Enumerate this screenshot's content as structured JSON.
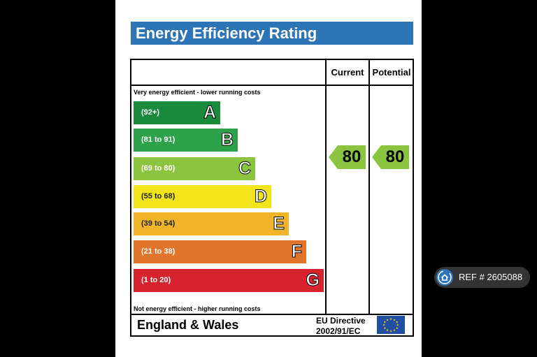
{
  "title": "Energy Efficiency Rating",
  "columns": {
    "current": "Current",
    "potential": "Potential"
  },
  "notes": {
    "top": "Very energy efficient - lower running costs",
    "bottom": "Not energy efficient - higher running costs"
  },
  "bands": [
    {
      "range": "(92+)",
      "letter": "A",
      "color": "#1a8a3c"
    },
    {
      "range": "(81 to 91)",
      "letter": "B",
      "color": "#2ea24a"
    },
    {
      "range": "(69 to 80)",
      "letter": "C",
      "color": "#8bc53f"
    },
    {
      "range": "(55 to 68)",
      "letter": "D",
      "color": "#f3e51c"
    },
    {
      "range": "(39 to 54)",
      "letter": "E",
      "color": "#f0b429"
    },
    {
      "range": "(21 to 38)",
      "letter": "F",
      "color": "#e0742a"
    },
    {
      "range": "(1 to 20)",
      "letter": "G",
      "color": "#d6232e"
    }
  ],
  "ratings": {
    "current": "80",
    "potential": "80",
    "color": "#8bc53f"
  },
  "footer": {
    "country": "England & Wales",
    "directive_line1": "EU Directive",
    "directive_line2": "2002/91/EC"
  },
  "ref_badge": {
    "label": "REF # 2605088"
  }
}
